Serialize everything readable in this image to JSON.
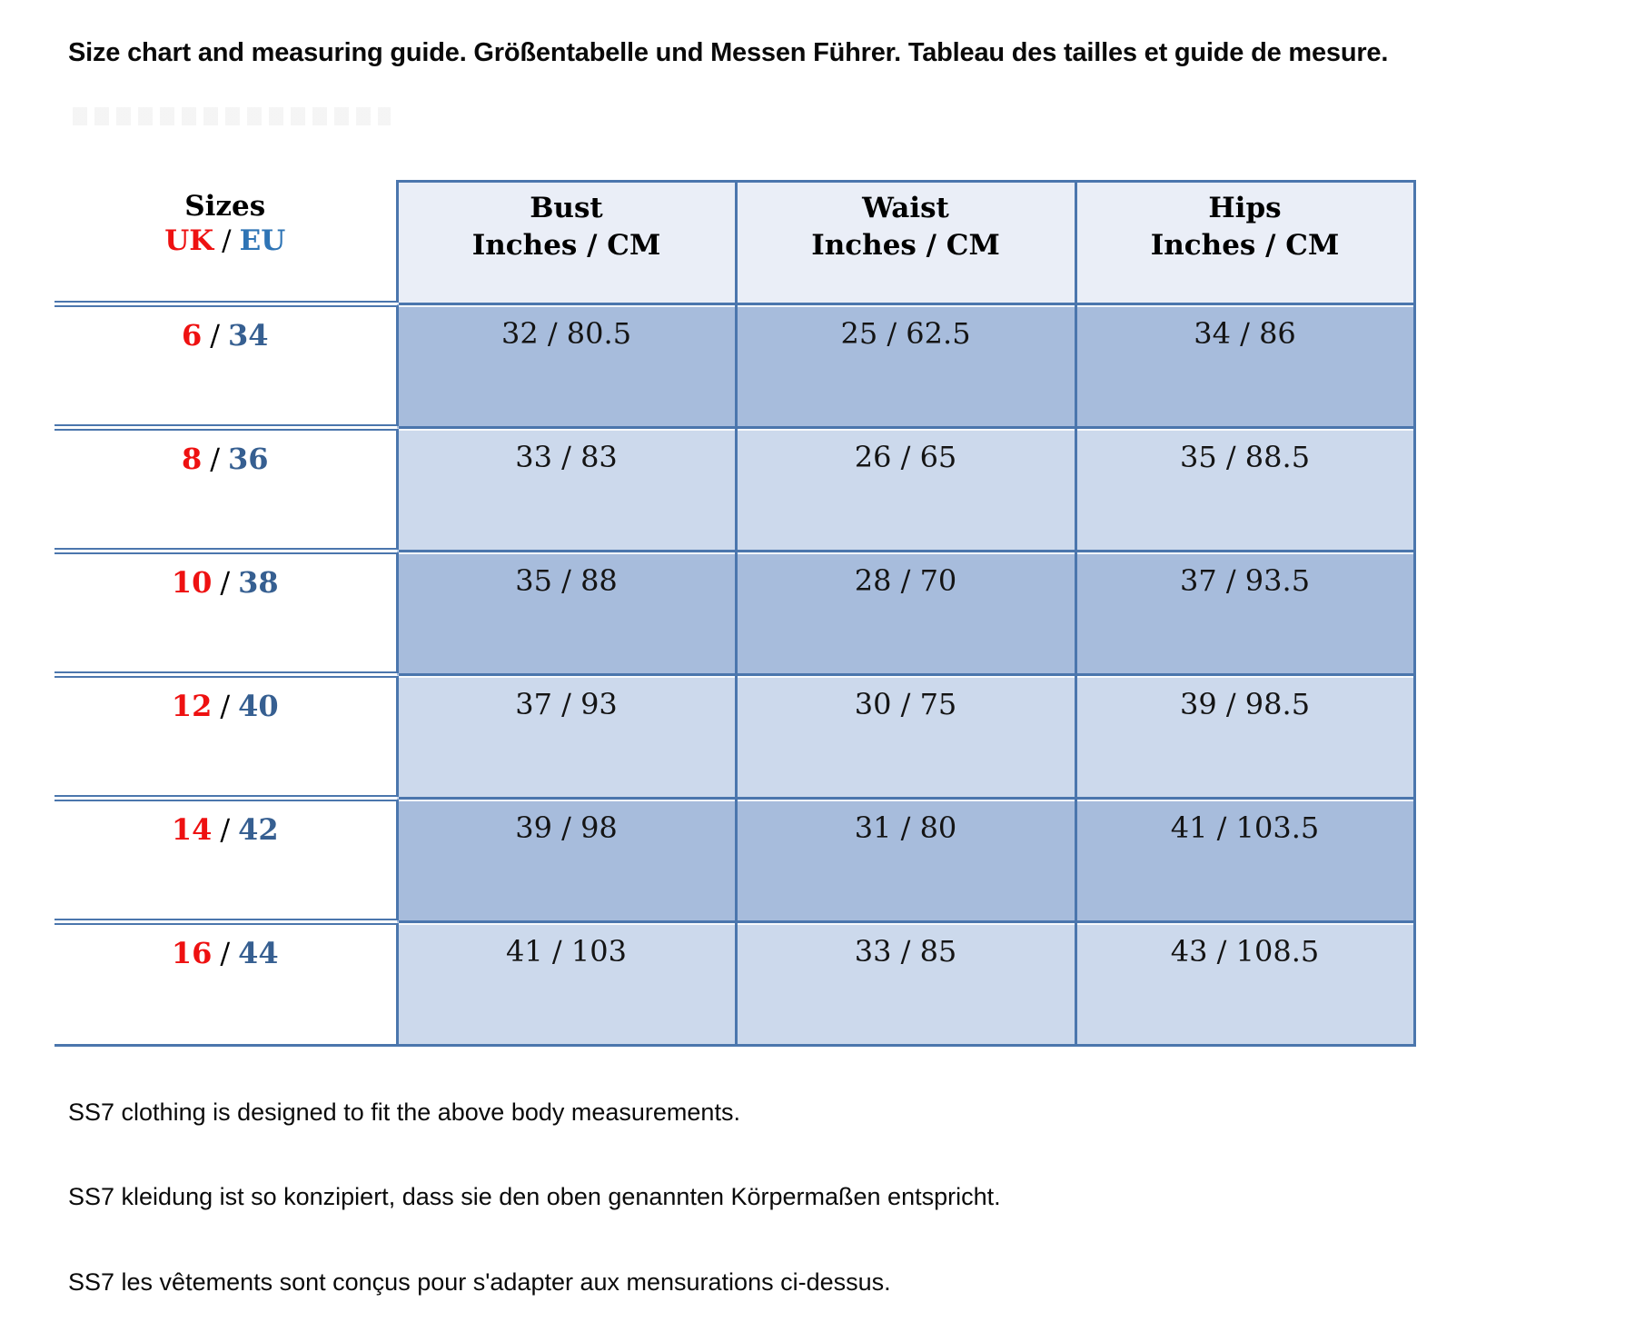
{
  "title": "Size chart and measuring guide. Größentabelle und Messen Führer. Tableau des tailles et guide de mesure.",
  "table": {
    "header": {
      "sizes_label": "Sizes",
      "uk": "UK",
      "sep": "/",
      "eu": "EU",
      "columns": [
        {
          "name": "Bust",
          "unit": "Inches / CM"
        },
        {
          "name": "Waist",
          "unit": "Inches / CM"
        },
        {
          "name": "Hips",
          "unit": "Inches / CM"
        }
      ]
    },
    "rows": [
      {
        "uk": "6",
        "eu": "34",
        "bust": "32 / 80.5",
        "waist": "25 / 62.5",
        "hips": "34 / 86"
      },
      {
        "uk": "8",
        "eu": "36",
        "bust": "33 / 83",
        "waist": "26 / 65",
        "hips": "35 / 88.5"
      },
      {
        "uk": "10",
        "eu": "38",
        "bust": "35 / 88",
        "waist": "28 / 70",
        "hips": "37 / 93.5"
      },
      {
        "uk": "12",
        "eu": "40",
        "bust": "37 / 93",
        "waist": "30 / 75",
        "hips": "39 / 98.5"
      },
      {
        "uk": "14",
        "eu": "42",
        "bust": "39 / 98",
        "waist": "31 / 80",
        "hips": "41 / 103.5"
      },
      {
        "uk": "16",
        "eu": "44",
        "bust": "41 / 103",
        "waist": "33 / 85",
        "hips": "43 / 108.5"
      }
    ]
  },
  "notes": [
    "SS7 clothing is designed to fit the above body measurements.",
    "SS7 kleidung ist so konzipiert, dass sie den oben genannten Körpermaßen entspricht.",
    "SS7 les vêtements sont conçus pour s'adapter aux mensurations ci-dessus."
  ],
  "colors": {
    "accent": "#4b76ad",
    "header_bg": "#eaeef7",
    "row_dark": "#a7bcdc",
    "row_light": "#ccd9ec",
    "uk_red": "#ee1111",
    "eu_header_blue": "#2e74b5",
    "eu_value_blue": "#365f91"
  },
  "chart_data": {
    "type": "table",
    "title": "Size chart and measuring guide. Größentabelle und Messen Führer. Tableau des tailles et guide de mesure.",
    "columns": [
      "Sizes UK / EU",
      "Bust Inches / CM",
      "Waist Inches / CM",
      "Hips Inches / CM"
    ],
    "rows": [
      [
        "6 / 34",
        "32 / 80.5",
        "25 / 62.5",
        "34 / 86"
      ],
      [
        "8 / 36",
        "33 / 83",
        "26 / 65",
        "35 / 88.5"
      ],
      [
        "10 / 38",
        "35 / 88",
        "28 / 70",
        "37 / 93.5"
      ],
      [
        "12 / 40",
        "37 / 93",
        "30 / 75",
        "39 / 98.5"
      ],
      [
        "14 / 42",
        "39 / 98",
        "31 / 80",
        "41 / 103.5"
      ],
      [
        "16 / 44",
        "41 / 103",
        "33 / 85",
        "43 / 108.5"
      ]
    ],
    "legend_position": "none",
    "grid": true
  }
}
